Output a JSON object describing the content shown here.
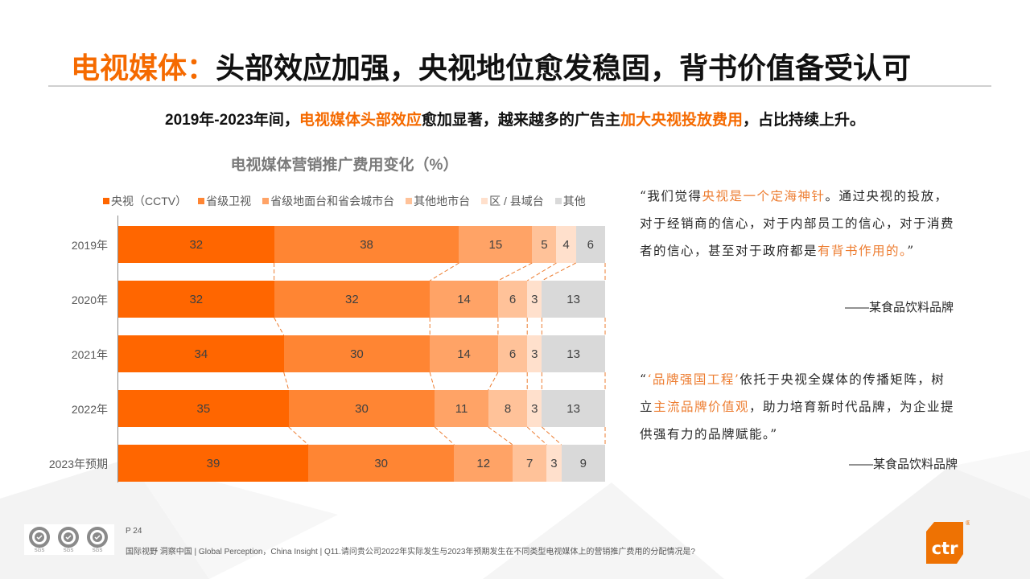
{
  "slide": {
    "title_accent": "电视媒体：",
    "title_rest": "头部效应加强，央视地位愈发稳固，背书价值备受认可",
    "subtitle_parts": [
      {
        "text": "2019年-2023年间，",
        "accent": false
      },
      {
        "text": "电视媒体头部效应",
        "accent": true
      },
      {
        "text": "愈加显著，越来越多的广告主",
        "accent": false
      },
      {
        "text": "加大央视投放费用",
        "accent": true
      },
      {
        "text": "，占比持续上升。",
        "accent": false
      }
    ]
  },
  "chart_data": {
    "type": "bar",
    "orientation": "horizontal",
    "stacked": true,
    "percent_stacked": true,
    "title": "电视媒体营销推广费用变化（%）",
    "xlabel": "",
    "ylabel": "",
    "xlim": [
      0,
      100
    ],
    "grid": false,
    "legend_position": "top",
    "categories": [
      "2019年",
      "2020年",
      "2021年",
      "2022年",
      "2023年预期"
    ],
    "series": [
      {
        "name": "央视（CCTV）",
        "color": "#ff6600",
        "values": [
          32,
          32,
          34,
          35,
          39
        ]
      },
      {
        "name": "省级卫视",
        "color": "#ff8533",
        "values": [
          38,
          32,
          30,
          30,
          30
        ]
      },
      {
        "name": "省级地面台和省会城市台",
        "color": "#ffa366",
        "values": [
          15,
          14,
          14,
          11,
          12
        ]
      },
      {
        "name": "其他地市台",
        "color": "#ffc299",
        "values": [
          5,
          6,
          6,
          8,
          7
        ]
      },
      {
        "name": "区 / 县域台",
        "color": "#ffe0cc",
        "values": [
          4,
          3,
          3,
          3,
          3
        ]
      },
      {
        "name": "其他",
        "color": "#d9d9d9",
        "values": [
          6,
          13,
          13,
          13,
          9
        ]
      }
    ],
    "connector_lines": "dashed orange lines connecting segment boundaries between adjacent bars"
  },
  "quotes": [
    {
      "parts": [
        {
          "text": "“我们觉得",
          "accent": false
        },
        {
          "text": "央视是一个定海神针",
          "accent": true
        },
        {
          "text": "。通过央视的投放，对于经销商的信心，对于内部员工的信心，对于消费者的信心，甚至对于政府都是",
          "accent": false
        },
        {
          "text": "有背书作用的。",
          "accent": true
        },
        {
          "text": "”",
          "accent": false
        }
      ],
      "attribution": "——某食品饮料品牌"
    },
    {
      "parts": [
        {
          "text": "“",
          "accent": false
        },
        {
          "text": "‘品牌强国工程’",
          "accent": true
        },
        {
          "text": "依托于央视全媒体的传播矩阵，树立",
          "accent": false
        },
        {
          "text": "主流品牌价值观",
          "accent": true
        },
        {
          "text": "，助力培育新时代品牌，为企业提供强有力的品牌赋能。”",
          "accent": false
        }
      ],
      "attribution": "——某食品饮料品牌"
    }
  ],
  "footer": {
    "page": "P 24",
    "note": "国际视野  洞察中国 |  Global Perception，China Insight | Q11.请问贵公司2022年实际发生与2023年预期发生在不同类型电视媒体上的营销推广费用的分配情况是?",
    "certification_label": "SGS",
    "logo_text": "ctr",
    "logo_mark": "®"
  },
  "colors": {
    "accent": "#f56a00",
    "quote_accent": "#ed7d31",
    "logo_orange": "#ee7203"
  }
}
